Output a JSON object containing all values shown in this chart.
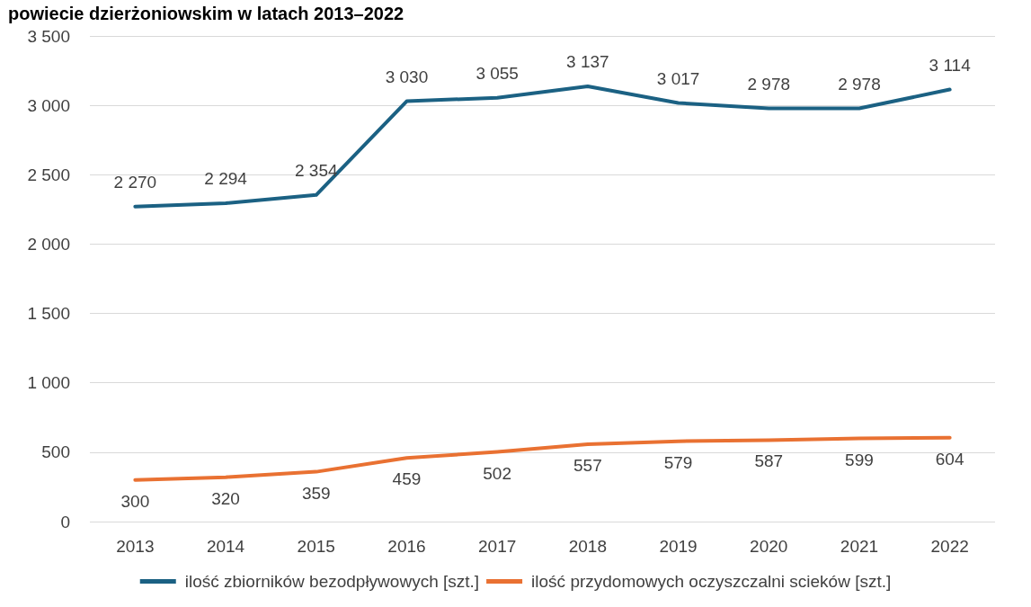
{
  "chart_data": {
    "type": "line",
    "title": "powiecie dzierżoniowskim w latach 2013–2022",
    "categories": [
      "2013",
      "2014",
      "2015",
      "2016",
      "2017",
      "2018",
      "2019",
      "2020",
      "2021",
      "2022"
    ],
    "series": [
      {
        "name": "ilość zbiorników bezodpływowych [szt.]",
        "color": "#1b6183",
        "values": [
          2270,
          2294,
          2354,
          3030,
          3055,
          3137,
          3017,
          2978,
          2978,
          3114
        ],
        "value_labels": [
          "2 270",
          "2 294",
          "2 354",
          "3 030",
          "3 055",
          "3 137",
          "3 017",
          "2 978",
          "2 978",
          "3 114"
        ]
      },
      {
        "name": "ilość przydomowych oczyszczalni scieków [szt.]",
        "color": "#e97132",
        "values": [
          300,
          320,
          359,
          459,
          502,
          557,
          579,
          587,
          599,
          604
        ],
        "value_labels": [
          "300",
          "320",
          "359",
          "459",
          "502",
          "557",
          "579",
          "587",
          "599",
          "604"
        ]
      }
    ],
    "ylim": [
      0,
      3500
    ],
    "yticks": [
      0,
      500,
      {
        "value": 1000,
        "label": "1 000"
      },
      {
        "value": 1500,
        "label": "1 500"
      },
      {
        "value": 2000,
        "label": "2 000"
      },
      {
        "value": 2500,
        "label": "2 500"
      },
      {
        "value": 3000,
        "label": "3 000"
      },
      {
        "value": 3500,
        "label": "3 500"
      }
    ],
    "grid": "y",
    "legend": "bottom",
    "marker": "none",
    "line_style": "solid"
  }
}
